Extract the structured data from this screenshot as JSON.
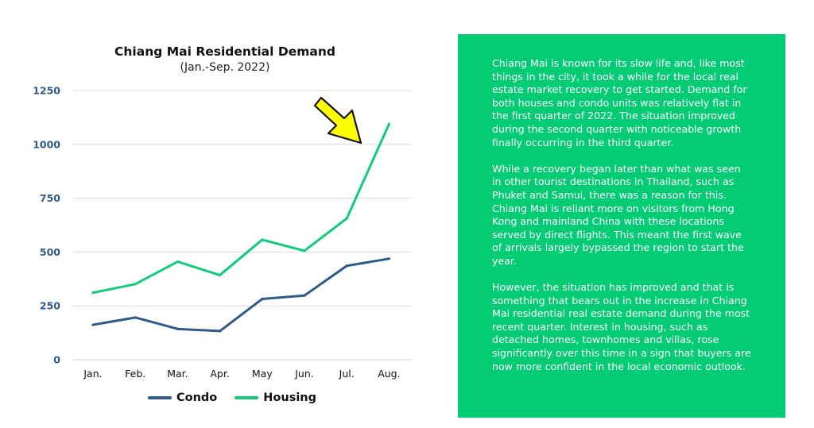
{
  "chart_data": {
    "type": "line",
    "title": "Chiang Mai Residential Demand",
    "subtitle": "(Jan.-Sep. 2022)",
    "categories": [
      "Jan.",
      "Feb.",
      "Mar.",
      "Apr.",
      "May",
      "Jun.",
      "Jul.",
      "Aug."
    ],
    "series": [
      {
        "name": "Condo",
        "color": "#2e5a8a",
        "values": [
          162,
          196,
          143,
          133,
          282,
          298,
          436,
          469
        ]
      },
      {
        "name": "Housing",
        "color": "#10cc78",
        "values": [
          311,
          351,
          455,
          393,
          557,
          506,
          656,
          1094
        ]
      }
    ],
    "yticks": [
      0,
      250,
      500,
      750,
      1000,
      1250
    ],
    "ylim": [
      0,
      1250
    ],
    "grid": true,
    "legend": "bottom",
    "annotation": "yellow-arrow-pointing-to-aug-housing"
  },
  "panel": {
    "background": "#04cc74",
    "paragraphs": [
      "Chiang Mai is known for its slow life and, like most things in the city, it took a while for the local real estate market recovery to get started. Demand for both houses and condo units was relatively flat in the first quarter of 2022. The situation improved during the second quarter with noticeable growth finally occurring in the third quarter.",
      "While a recovery began later than what was seen in other tourist destinations in Thailand, such as Phuket and Samui, there was a reason for this. Chiang Mai is reliant more on visitors from Hong Kong and mainland China with these locations served by direct flights. This meant the first wave of arrivals largely bypassed the region to start the year.",
      "However, the situation has improved and that is something that bears out in the increase in Chiang Mai residential real estate demand during the most recent quarter. Interest in housing, such as detached homes, townhomes and villas, rose significantly over this time in a sign that buyers are now more confident in the local economic outlook."
    ]
  }
}
